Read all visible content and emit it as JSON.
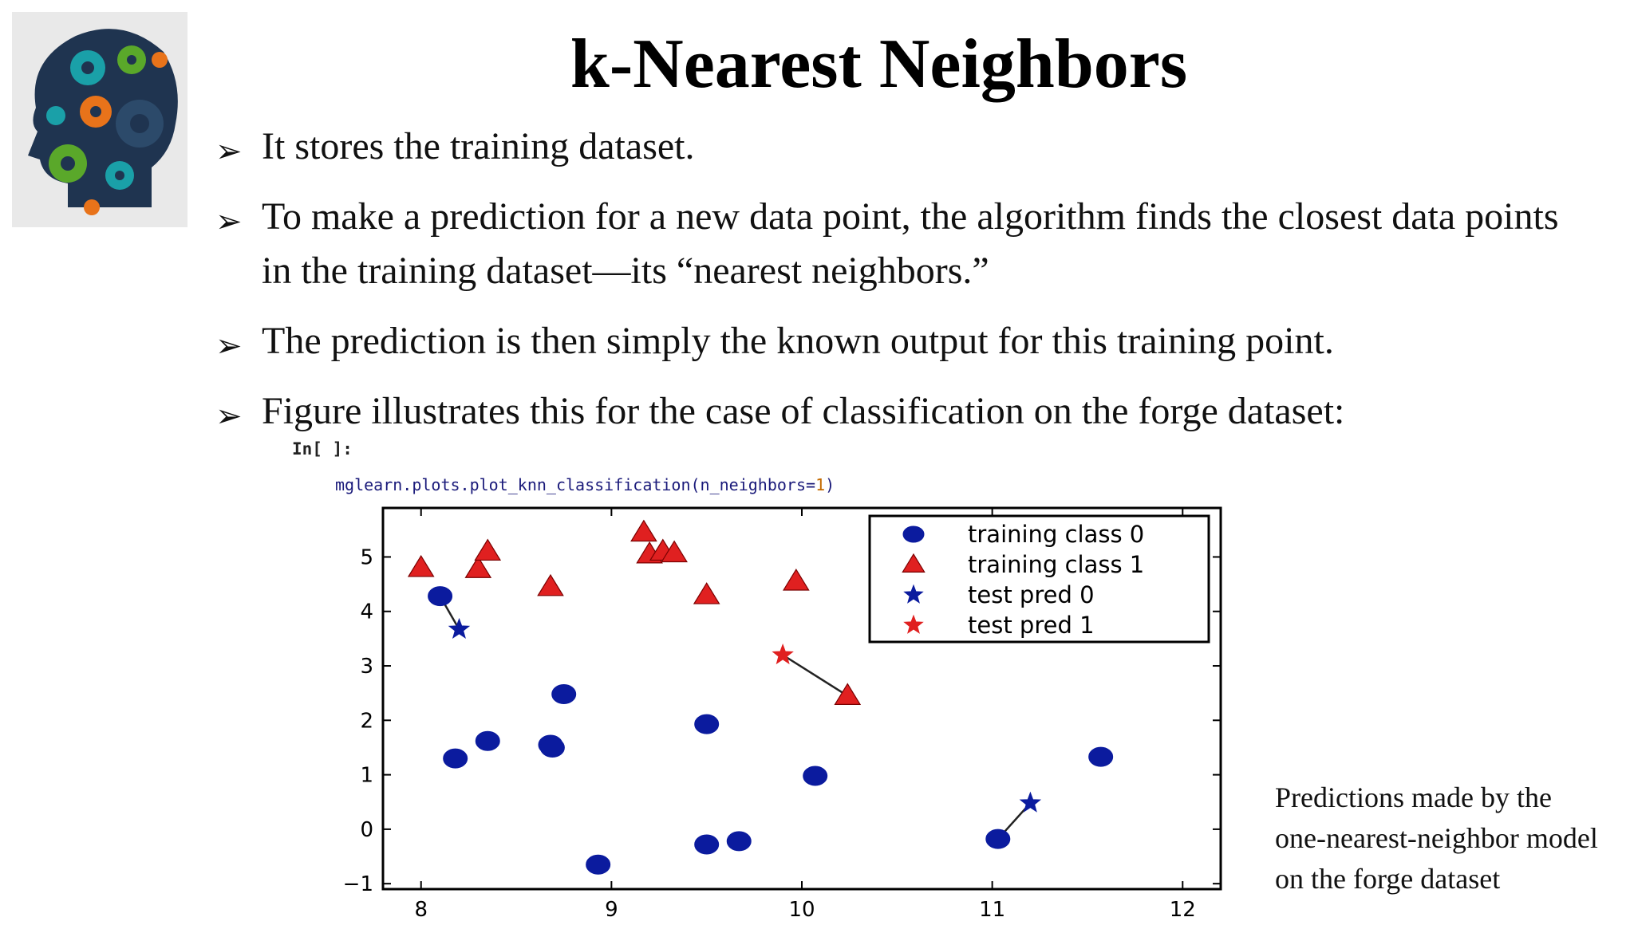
{
  "slide": {
    "title": "k-Nearest Neighbors",
    "bullets": [
      "It stores the training dataset.",
      "To make a prediction for a new data point, the algorithm finds the closest data points in the training dataset—its “nearest neighbors.”",
      "The prediction is then simply the known output for this training point.",
      "Figure illustrates this for the case of classification on the forge dataset:"
    ],
    "cell_prompt": "In[ ]:",
    "code_prefix": "mglearn.plots.plot_knn_classification(n_neighbors=",
    "code_number": "1",
    "code_suffix": ")",
    "caption_lines": [
      "Predictions made by the",
      "one-nearest-neighbor model",
      "on the forge dataset"
    ]
  },
  "colors": {
    "class0": "#0b1b9e",
    "class1": "#e02020",
    "line": "#222222"
  },
  "chart_data": {
    "type": "scatter",
    "xlim": [
      7.8,
      12.2
    ],
    "ylim": [
      -1.1,
      5.9
    ],
    "xticks": [
      8,
      9,
      10,
      11,
      12
    ],
    "yticks": [
      -1,
      0,
      1,
      2,
      3,
      4,
      5
    ],
    "legend_position": "top-right",
    "series": [
      {
        "name": "training class 0",
        "marker": "circle",
        "points": [
          [
            8.1,
            4.28
          ],
          [
            8.18,
            1.3
          ],
          [
            8.35,
            1.62
          ],
          [
            8.68,
            1.55
          ],
          [
            8.69,
            1.5
          ],
          [
            8.75,
            2.48
          ],
          [
            8.93,
            -0.65
          ],
          [
            9.5,
            1.93
          ],
          [
            9.5,
            -0.28
          ],
          [
            9.67,
            -0.22
          ],
          [
            10.07,
            0.98
          ],
          [
            11.03,
            -0.18
          ],
          [
            11.57,
            1.33
          ]
        ]
      },
      {
        "name": "training class 1",
        "marker": "triangle",
        "points": [
          [
            8.0,
            4.8
          ],
          [
            8.3,
            4.78
          ],
          [
            8.35,
            5.1
          ],
          [
            8.68,
            4.45
          ],
          [
            9.17,
            5.45
          ],
          [
            9.2,
            5.05
          ],
          [
            9.27,
            5.1
          ],
          [
            9.33,
            5.07
          ],
          [
            9.5,
            4.3
          ],
          [
            9.97,
            4.55
          ],
          [
            10.24,
            2.45
          ]
        ]
      },
      {
        "name": "test pred 0",
        "marker": "star",
        "points": [
          [
            8.2,
            3.67
          ],
          [
            11.2,
            0.48
          ]
        ]
      },
      {
        "name": "test pred 1",
        "marker": "star",
        "points": [
          [
            9.9,
            3.2
          ]
        ]
      }
    ],
    "neighbor_links": [
      [
        [
          8.2,
          3.67
        ],
        [
          8.1,
          4.28
        ]
      ],
      [
        [
          9.9,
          3.2
        ],
        [
          10.24,
          2.45
        ]
      ],
      [
        [
          11.2,
          0.48
        ],
        [
          11.03,
          -0.18
        ]
      ]
    ]
  }
}
